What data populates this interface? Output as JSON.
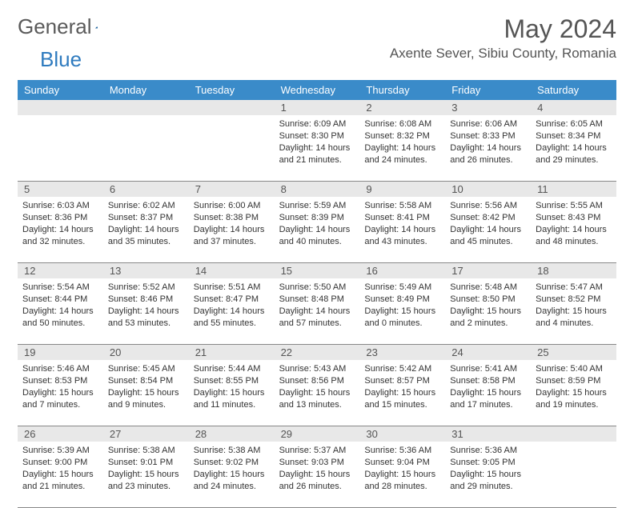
{
  "logo": {
    "part1": "General",
    "part2": "Blue"
  },
  "title": "May 2024",
  "location": "Axente Sever, Sibiu County, Romania",
  "dayNames": [
    "Sunday",
    "Monday",
    "Tuesday",
    "Wednesday",
    "Thursday",
    "Friday",
    "Saturday"
  ],
  "colors": {
    "headerBg": "#3a8bc9",
    "headerText": "#ffffff",
    "dayNumBg": "#e8e8e8",
    "textMuted": "#555555",
    "textBody": "#333333",
    "border": "#888888"
  },
  "weeks": [
    {
      "nums": [
        "",
        "",
        "",
        "1",
        "2",
        "3",
        "4"
      ],
      "days": [
        null,
        null,
        null,
        {
          "sunrise": "6:09 AM",
          "sunset": "8:30 PM",
          "daylight": "14 hours and 21 minutes."
        },
        {
          "sunrise": "6:08 AM",
          "sunset": "8:32 PM",
          "daylight": "14 hours and 24 minutes."
        },
        {
          "sunrise": "6:06 AM",
          "sunset": "8:33 PM",
          "daylight": "14 hours and 26 minutes."
        },
        {
          "sunrise": "6:05 AM",
          "sunset": "8:34 PM",
          "daylight": "14 hours and 29 minutes."
        }
      ]
    },
    {
      "nums": [
        "5",
        "6",
        "7",
        "8",
        "9",
        "10",
        "11"
      ],
      "days": [
        {
          "sunrise": "6:03 AM",
          "sunset": "8:36 PM",
          "daylight": "14 hours and 32 minutes."
        },
        {
          "sunrise": "6:02 AM",
          "sunset": "8:37 PM",
          "daylight": "14 hours and 35 minutes."
        },
        {
          "sunrise": "6:00 AM",
          "sunset": "8:38 PM",
          "daylight": "14 hours and 37 minutes."
        },
        {
          "sunrise": "5:59 AM",
          "sunset": "8:39 PM",
          "daylight": "14 hours and 40 minutes."
        },
        {
          "sunrise": "5:58 AM",
          "sunset": "8:41 PM",
          "daylight": "14 hours and 43 minutes."
        },
        {
          "sunrise": "5:56 AM",
          "sunset": "8:42 PM",
          "daylight": "14 hours and 45 minutes."
        },
        {
          "sunrise": "5:55 AM",
          "sunset": "8:43 PM",
          "daylight": "14 hours and 48 minutes."
        }
      ]
    },
    {
      "nums": [
        "12",
        "13",
        "14",
        "15",
        "16",
        "17",
        "18"
      ],
      "days": [
        {
          "sunrise": "5:54 AM",
          "sunset": "8:44 PM",
          "daylight": "14 hours and 50 minutes."
        },
        {
          "sunrise": "5:52 AM",
          "sunset": "8:46 PM",
          "daylight": "14 hours and 53 minutes."
        },
        {
          "sunrise": "5:51 AM",
          "sunset": "8:47 PM",
          "daylight": "14 hours and 55 minutes."
        },
        {
          "sunrise": "5:50 AM",
          "sunset": "8:48 PM",
          "daylight": "14 hours and 57 minutes."
        },
        {
          "sunrise": "5:49 AM",
          "sunset": "8:49 PM",
          "daylight": "15 hours and 0 minutes."
        },
        {
          "sunrise": "5:48 AM",
          "sunset": "8:50 PM",
          "daylight": "15 hours and 2 minutes."
        },
        {
          "sunrise": "5:47 AM",
          "sunset": "8:52 PM",
          "daylight": "15 hours and 4 minutes."
        }
      ]
    },
    {
      "nums": [
        "19",
        "20",
        "21",
        "22",
        "23",
        "24",
        "25"
      ],
      "days": [
        {
          "sunrise": "5:46 AM",
          "sunset": "8:53 PM",
          "daylight": "15 hours and 7 minutes."
        },
        {
          "sunrise": "5:45 AM",
          "sunset": "8:54 PM",
          "daylight": "15 hours and 9 minutes."
        },
        {
          "sunrise": "5:44 AM",
          "sunset": "8:55 PM",
          "daylight": "15 hours and 11 minutes."
        },
        {
          "sunrise": "5:43 AM",
          "sunset": "8:56 PM",
          "daylight": "15 hours and 13 minutes."
        },
        {
          "sunrise": "5:42 AM",
          "sunset": "8:57 PM",
          "daylight": "15 hours and 15 minutes."
        },
        {
          "sunrise": "5:41 AM",
          "sunset": "8:58 PM",
          "daylight": "15 hours and 17 minutes."
        },
        {
          "sunrise": "5:40 AM",
          "sunset": "8:59 PM",
          "daylight": "15 hours and 19 minutes."
        }
      ]
    },
    {
      "nums": [
        "26",
        "27",
        "28",
        "29",
        "30",
        "31",
        ""
      ],
      "days": [
        {
          "sunrise": "5:39 AM",
          "sunset": "9:00 PM",
          "daylight": "15 hours and 21 minutes."
        },
        {
          "sunrise": "5:38 AM",
          "sunset": "9:01 PM",
          "daylight": "15 hours and 23 minutes."
        },
        {
          "sunrise": "5:38 AM",
          "sunset": "9:02 PM",
          "daylight": "15 hours and 24 minutes."
        },
        {
          "sunrise": "5:37 AM",
          "sunset": "9:03 PM",
          "daylight": "15 hours and 26 minutes."
        },
        {
          "sunrise": "5:36 AM",
          "sunset": "9:04 PM",
          "daylight": "15 hours and 28 minutes."
        },
        {
          "sunrise": "5:36 AM",
          "sunset": "9:05 PM",
          "daylight": "15 hours and 29 minutes."
        },
        null
      ]
    }
  ]
}
